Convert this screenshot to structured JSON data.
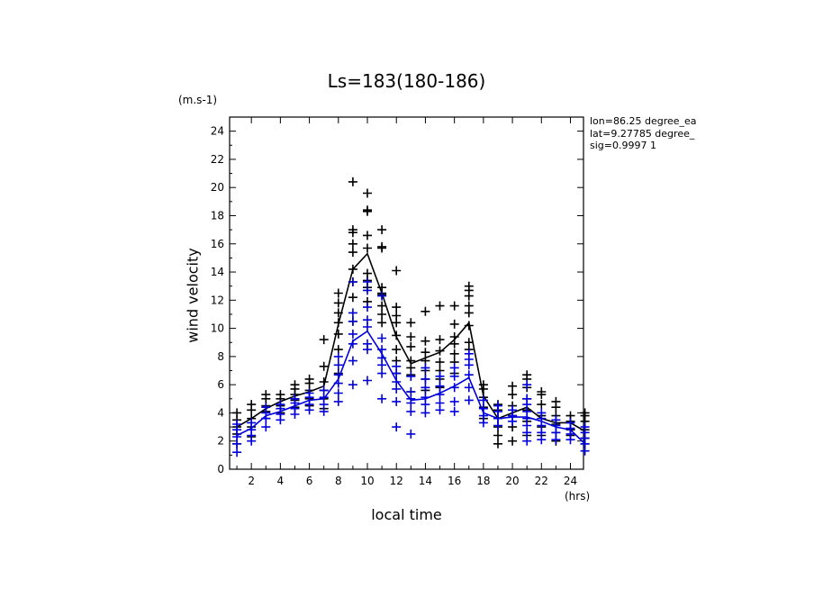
{
  "header": {
    "title": "Ls=183(180-186)",
    "units": "(m.s-1)",
    "info": [
      "lon=86.25 degree_ea",
      "lat=9.27785 degree_",
      "sig=0.9997 1"
    ],
    "x_units": "(hrs)"
  },
  "colors": {
    "series_black": "#000000",
    "series_blue": "#0000dd"
  },
  "chart_data": {
    "type": "line",
    "title": "Ls=183(180-186)",
    "xlabel": "local time",
    "ylabel": "wind velocity",
    "xlim": [
      0.5,
      24.9
    ],
    "ylim": [
      0,
      25
    ],
    "xticks": [
      2,
      4,
      6,
      8,
      10,
      12,
      14,
      16,
      18,
      20,
      22,
      24
    ],
    "yticks": [
      0,
      2,
      4,
      6,
      8,
      10,
      12,
      14,
      16,
      18,
      20,
      22,
      24
    ],
    "grid": false,
    "x": [
      1,
      2,
      3,
      4,
      5,
      6,
      7,
      8,
      9,
      10,
      11,
      12,
      13,
      14,
      15,
      16,
      17,
      18,
      19,
      20,
      21,
      22,
      23,
      24,
      25
    ],
    "series": [
      {
        "color": "black",
        "mean": [
          3.0,
          3.6,
          4.3,
          4.8,
          5.2,
          5.5,
          5.9,
          10.3,
          14.2,
          15.3,
          12.5,
          9.4,
          7.5,
          7.9,
          8.3,
          9.2,
          10.4,
          5.2,
          3.6,
          4.0,
          4.4,
          3.6,
          3.3,
          3.3,
          2.7
        ],
        "scatter": [
          [
            1.8,
            2.5,
            3.0,
            3.5,
            4.0
          ],
          [
            2.3,
            3.0,
            3.6,
            4.2,
            4.6
          ],
          [
            3.6,
            4.1,
            4.5,
            5.0,
            5.3
          ],
          [
            4.0,
            4.5,
            5.0,
            5.3
          ],
          [
            4.4,
            4.9,
            5.3,
            5.7,
            6.0
          ],
          [
            4.5,
            5.0,
            5.6,
            6.1,
            6.4
          ],
          [
            4.3,
            5.0,
            5.6,
            6.2,
            7.3,
            9.2
          ],
          [
            6.8,
            8.5,
            9.6,
            10.4,
            11.1,
            11.8,
            12.5
          ],
          [
            10.5,
            12.2,
            13.3,
            14.2,
            15.4,
            16.0,
            16.8,
            17.0,
            20.4
          ],
          [
            11.9,
            12.9,
            13.4,
            13.9,
            15.7,
            16.6,
            18.3,
            18.4,
            19.6
          ],
          [
            10.4,
            11.0,
            11.6,
            12.4,
            12.5,
            12.9,
            15.7,
            15.8,
            17.0
          ],
          [
            6.8,
            7.7,
            8.5,
            9.5,
            10.4,
            10.9,
            11.5,
            14.1
          ],
          [
            5.5,
            6.6,
            6.7,
            7.2,
            7.7,
            8.7,
            9.4,
            10.4
          ],
          [
            5.6,
            6.4,
            7.0,
            7.7,
            8.3,
            9.1,
            11.2
          ],
          [
            5.8,
            6.4,
            7.0,
            7.6,
            8.4,
            9.2,
            11.6
          ],
          [
            6.8,
            7.6,
            8.2,
            8.9,
            9.4,
            10.3,
            11.6
          ],
          [
            8.5,
            9.0,
            10.2,
            11.1,
            11.6,
            12.3,
            12.7,
            13.0
          ],
          [
            3.6,
            4.4,
            5.1,
            5.7,
            6.0
          ],
          [
            1.8,
            2.4,
            3.0,
            3.6,
            4.2,
            4.6
          ],
          [
            2.0,
            3.0,
            3.8,
            4.5,
            5.3,
            5.9
          ],
          [
            2.4,
            3.4,
            4.2,
            5.0,
            5.8,
            6.4,
            6.7
          ],
          [
            2.4,
            3.0,
            3.8,
            4.6,
            5.3,
            5.5
          ],
          [
            2.0,
            2.6,
            3.2,
            3.8,
            4.4,
            4.8
          ],
          [
            2.4,
            2.8,
            3.4,
            3.8
          ],
          [
            1.8,
            2.2,
            2.8,
            3.4,
            3.8,
            4.0
          ]
        ]
      },
      {
        "color": "blue",
        "mean": [
          2.4,
          2.9,
          3.8,
          4.1,
          4.5,
          4.9,
          5.0,
          6.4,
          9.1,
          9.8,
          8.2,
          6.3,
          4.9,
          5.0,
          5.4,
          5.9,
          6.5,
          4.0,
          3.6,
          3.7,
          3.7,
          3.4,
          3.0,
          2.8,
          1.8
        ],
        "scatter": [
          [
            1.2,
            1.8,
            2.3,
            2.8,
            3.2
          ],
          [
            2.0,
            2.4,
            2.8,
            3.3
          ],
          [
            3.0,
            3.6,
            4.0,
            4.4
          ],
          [
            3.5,
            3.9,
            4.3,
            4.6
          ],
          [
            3.9,
            4.3,
            4.7,
            5.0
          ],
          [
            4.2,
            4.6,
            5.1,
            5.4
          ],
          [
            4.1,
            4.6,
            5.1,
            5.6
          ],
          [
            4.8,
            5.4,
            6.1,
            6.7,
            7.4,
            8.0
          ],
          [
            6.0,
            7.7,
            8.9,
            9.6,
            10.5,
            11.1,
            13.3
          ],
          [
            6.3,
            8.5,
            8.9,
            10.1,
            10.6,
            11.5,
            12.7,
            13.3
          ],
          [
            5.0,
            6.8,
            7.4,
            7.9,
            8.5,
            9.3,
            12.3
          ],
          [
            3.0,
            4.8,
            5.7,
            6.2,
            6.8,
            7.3
          ],
          [
            2.5,
            4.1,
            4.7,
            5.0,
            5.5,
            6.6
          ],
          [
            4.0,
            4.6,
            5.1,
            5.8,
            6.4,
            7.2
          ],
          [
            4.2,
            4.7,
            5.3,
            5.9,
            6.6
          ],
          [
            4.1,
            4.8,
            5.8,
            6.6,
            7.2
          ],
          [
            4.9,
            5.8,
            6.7,
            7.4,
            7.8,
            8.2
          ],
          [
            3.3,
            3.8,
            4.3,
            4.9
          ],
          [
            3.1,
            3.6,
            4.1,
            4.5
          ],
          [
            3.4,
            3.8,
            4.2
          ],
          [
            2.0,
            2.6,
            3.1,
            3.6,
            4.1,
            4.6,
            5.0,
            6.0
          ],
          [
            2.1,
            2.6,
            3.1,
            3.6,
            4.0
          ],
          [
            2.1,
            2.6,
            3.1,
            3.5
          ],
          [
            2.1,
            2.5,
            2.9,
            3.3
          ],
          [
            1.3,
            1.8,
            2.2,
            2.6,
            3.0
          ]
        ]
      }
    ]
  }
}
